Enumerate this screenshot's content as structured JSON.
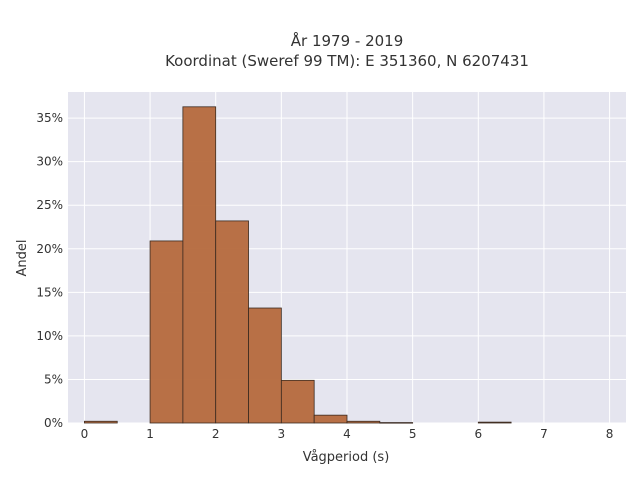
{
  "chart_data": {
    "type": "bar",
    "title": "År 1979 - 2019",
    "subtitle": "Koordinat (Sweref 99 TM): E 351360, N 6207431",
    "xlabel": "Vågperiod (s)",
    "ylabel": "Andel",
    "xlim": [
      -0.25,
      8.25
    ],
    "ylim": [
      0,
      0.38
    ],
    "bin_width": 0.5,
    "x_ticks": [
      0,
      1,
      2,
      3,
      4,
      5,
      6,
      7,
      8
    ],
    "x_tick_labels": [
      "0",
      "1",
      "2",
      "3",
      "4",
      "5",
      "6",
      "7",
      "8"
    ],
    "y_ticks": [
      0,
      0.05,
      0.1,
      0.15,
      0.2,
      0.25,
      0.3,
      0.35
    ],
    "y_tick_labels": [
      "0%",
      "5%",
      "10%",
      "15%",
      "20%",
      "25%",
      "30%",
      "35%"
    ],
    "bins": [
      {
        "start": 0.0,
        "value": 0.002
      },
      {
        "start": 1.0,
        "value": 0.209
      },
      {
        "start": 1.5,
        "value": 0.363
      },
      {
        "start": 2.0,
        "value": 0.232
      },
      {
        "start": 2.5,
        "value": 0.132
      },
      {
        "start": 3.0,
        "value": 0.049
      },
      {
        "start": 3.5,
        "value": 0.009
      },
      {
        "start": 4.0,
        "value": 0.002
      },
      {
        "start": 4.5,
        "value": 0.0005
      },
      {
        "start": 6.0,
        "value": 0.001
      }
    ],
    "grid": true,
    "colors": {
      "bar_fill": "#b5693c",
      "bar_stroke": "#3a2a20",
      "plot_bg": "#e5e5ef",
      "grid": "#ffffff"
    }
  }
}
